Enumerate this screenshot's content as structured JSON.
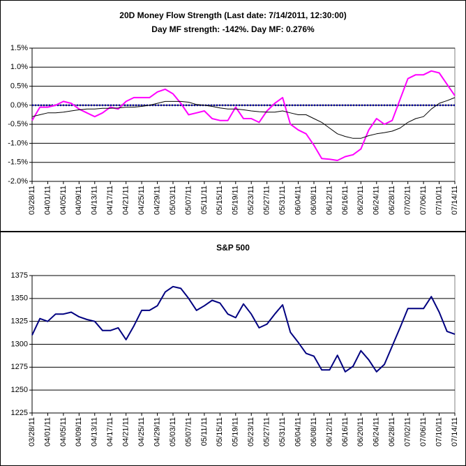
{
  "chart_data": [
    {
      "type": "line",
      "title": "20D Money Flow Strength (Last date: 7/14/2011, 12:30:00)",
      "subtitle": "Day MF strength: -142%. Day MF: 0.276%",
      "x": [
        "03/28/11",
        "03/30/11",
        "04/01/11",
        "04/03/11",
        "04/05/11",
        "04/07/11",
        "04/09/11",
        "04/11/11",
        "04/13/11",
        "04/15/11",
        "04/17/11",
        "04/19/11",
        "04/21/11",
        "04/23/11",
        "04/25/11",
        "04/27/11",
        "04/29/11",
        "05/01/11",
        "05/03/11",
        "05/05/11",
        "05/07/11",
        "05/09/11",
        "05/11/11",
        "05/13/11",
        "05/15/11",
        "05/17/11",
        "05/19/11",
        "05/21/11",
        "05/23/11",
        "05/25/11",
        "05/27/11",
        "05/29/11",
        "05/31/11",
        "06/02/11",
        "06/04/11",
        "06/06/11",
        "06/08/11",
        "06/10/11",
        "06/12/11",
        "06/14/11",
        "06/16/11",
        "06/18/11",
        "06/20/11",
        "06/22/11",
        "06/24/11",
        "06/26/11",
        "06/28/11",
        "06/30/11",
        "07/02/11",
        "07/04/11",
        "07/06/11",
        "07/08/11",
        "07/10/11",
        "07/12/11",
        "07/14/11"
      ],
      "series": [
        {
          "color": "#ff00ff",
          "width": 2,
          "values": [
            -0.4,
            -0.05,
            -0.05,
            0.0,
            0.1,
            0.05,
            -0.1,
            -0.2,
            -0.3,
            -0.2,
            -0.05,
            -0.1,
            0.1,
            0.2,
            0.2,
            0.2,
            0.35,
            0.42,
            0.3,
            0.05,
            -0.25,
            -0.2,
            -0.15,
            -0.35,
            -0.4,
            -0.4,
            -0.05,
            -0.35,
            -0.35,
            -0.45,
            -0.15,
            0.05,
            0.2,
            -0.5,
            -0.65,
            -0.75,
            -1.05,
            -1.4,
            -1.42,
            -1.45,
            -1.35,
            -1.3,
            -1.15,
            -0.65,
            -0.35,
            -0.5,
            -0.4,
            0.15,
            0.7,
            0.8,
            0.8,
            0.9,
            0.85,
            0.55,
            0.25
          ]
        },
        {
          "color": "#000000",
          "width": 1,
          "values": [
            -0.3,
            -0.25,
            -0.2,
            -0.2,
            -0.18,
            -0.15,
            -0.12,
            -0.1,
            -0.1,
            -0.08,
            -0.08,
            -0.07,
            -0.05,
            -0.05,
            -0.03,
            0.0,
            0.05,
            0.1,
            0.1,
            0.1,
            0.08,
            0.02,
            0.0,
            -0.03,
            -0.07,
            -0.1,
            -0.1,
            -0.12,
            -0.15,
            -0.17,
            -0.18,
            -0.18,
            -0.15,
            -0.2,
            -0.25,
            -0.25,
            -0.35,
            -0.45,
            -0.6,
            -0.75,
            -0.82,
            -0.87,
            -0.87,
            -0.8,
            -0.75,
            -0.72,
            -0.68,
            -0.6,
            -0.45,
            -0.35,
            -0.3,
            -0.1,
            0.05,
            0.12,
            0.2
          ]
        }
      ],
      "refline": {
        "value": 0,
        "color": "#0000a0"
      },
      "xlim": [
        "03/28/11",
        "07/14/11"
      ],
      "xticks": [
        "03/28/11",
        "04/01/11",
        "04/05/11",
        "04/09/11",
        "04/13/11",
        "04/17/11",
        "04/21/11",
        "04/25/11",
        "04/29/11",
        "05/03/11",
        "05/07/11",
        "05/11/11",
        "05/15/11",
        "05/19/11",
        "05/23/11",
        "05/27/11",
        "05/31/11",
        "06/04/11",
        "06/08/11",
        "06/12/11",
        "06/16/11",
        "06/20/11",
        "06/24/11",
        "06/28/11",
        "07/02/11",
        "07/06/11",
        "07/10/11",
        "07/14/11"
      ],
      "ylim": [
        -2.0,
        1.5
      ],
      "yticks": [
        {
          "value": -2.0,
          "label": "-2.0%"
        },
        {
          "value": -1.5,
          "label": "-1.5%"
        },
        {
          "value": -1.0,
          "label": "-1.0%"
        },
        {
          "value": -0.5,
          "label": "-0.5%"
        },
        {
          "value": 0.0,
          "label": "0.0%"
        },
        {
          "value": 0.5,
          "label": "0.5%"
        },
        {
          "value": 1.0,
          "label": "1.0%"
        },
        {
          "value": 1.5,
          "label": "1.5%"
        }
      ],
      "grid": true
    },
    {
      "type": "line",
      "title": "S&P 500",
      "x": [
        "03/28/11",
        "03/30/11",
        "04/01/11",
        "04/03/11",
        "04/05/11",
        "04/07/11",
        "04/09/11",
        "04/11/11",
        "04/13/11",
        "04/15/11",
        "04/17/11",
        "04/19/11",
        "04/21/11",
        "04/23/11",
        "04/25/11",
        "04/27/11",
        "04/29/11",
        "05/01/11",
        "05/03/11",
        "05/05/11",
        "05/07/11",
        "05/09/11",
        "05/11/11",
        "05/13/11",
        "05/15/11",
        "05/17/11",
        "05/19/11",
        "05/21/11",
        "05/23/11",
        "05/25/11",
        "05/27/11",
        "05/29/11",
        "05/31/11",
        "06/02/11",
        "06/04/11",
        "06/06/11",
        "06/08/11",
        "06/10/11",
        "06/12/11",
        "06/14/11",
        "06/16/11",
        "06/18/11",
        "06/20/11",
        "06/22/11",
        "06/24/11",
        "06/26/11",
        "06/28/11",
        "06/30/11",
        "07/02/11",
        "07/04/11",
        "07/06/11",
        "07/08/11",
        "07/10/11",
        "07/12/11",
        "07/14/11"
      ],
      "series": [
        {
          "color": "#000080",
          "width": 2,
          "values": [
            1310,
            1328,
            1325,
            1333,
            1333,
            1335,
            1330,
            1327,
            1325,
            1315,
            1315,
            1318,
            1305,
            1320,
            1337,
            1337,
            1342,
            1357,
            1363,
            1361,
            1350,
            1337,
            1342,
            1348,
            1345,
            1333,
            1329,
            1344,
            1333,
            1318,
            1322,
            1333,
            1343,
            1313,
            1302,
            1290,
            1287,
            1272,
            1272,
            1288,
            1270,
            1276,
            1293,
            1283,
            1270,
            1278,
            1298,
            1318,
            1339,
            1339,
            1339,
            1352,
            1335,
            1314,
            1311
          ]
        }
      ],
      "xlim": [
        "03/28/11",
        "07/14/11"
      ],
      "xticks": [
        "03/28/11",
        "04/01/11",
        "04/05/11",
        "04/09/11",
        "04/13/11",
        "04/17/11",
        "04/21/11",
        "04/25/11",
        "04/29/11",
        "05/03/11",
        "05/07/11",
        "05/11/11",
        "05/15/11",
        "05/19/11",
        "05/23/11",
        "05/27/11",
        "05/31/11",
        "06/04/11",
        "06/08/11",
        "06/12/11",
        "06/16/11",
        "06/20/11",
        "06/24/11",
        "06/28/11",
        "07/02/11",
        "07/06/11",
        "07/10/11",
        "07/14/11"
      ],
      "ylim": [
        1225,
        1375
      ],
      "yticks": [
        1225,
        1250,
        1275,
        1300,
        1325,
        1350,
        1375
      ],
      "grid": true
    }
  ]
}
